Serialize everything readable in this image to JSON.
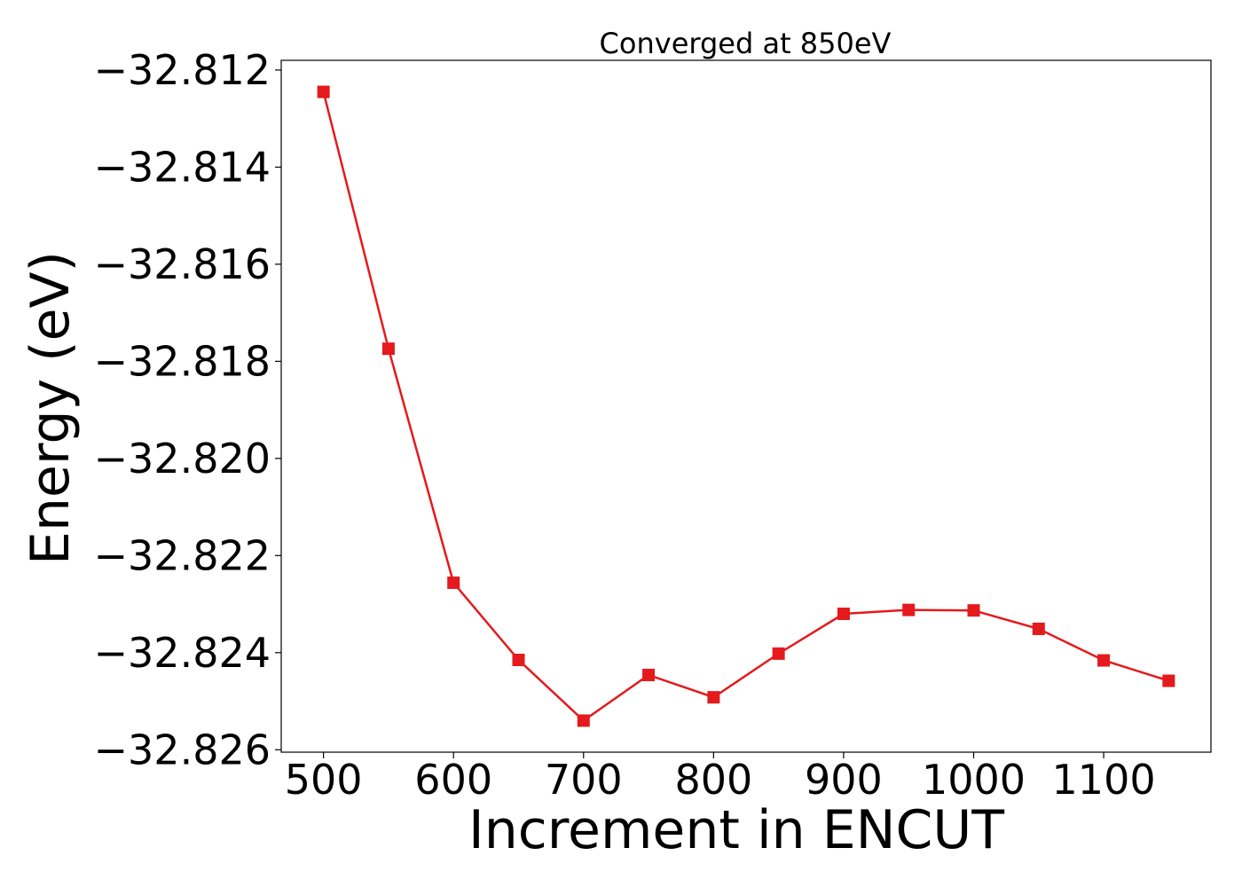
{
  "chart_data": {
    "type": "line",
    "title": "Converged at 850eV",
    "xlabel": "Increment in ENCUT",
    "ylabel": "Energy (eV)",
    "x": [
      500,
      550,
      600,
      650,
      700,
      750,
      800,
      850,
      900,
      950,
      1000,
      1050,
      1100,
      1150
    ],
    "series": [
      {
        "name": "",
        "color": "#e41a1c",
        "marker": "square",
        "values": [
          -32.81245,
          -32.81774,
          -32.82256,
          -32.82415,
          -32.8254,
          -32.82446,
          -32.82492,
          -32.82402,
          -32.8232,
          -32.82312,
          -32.82313,
          -32.82351,
          -32.82416,
          -32.82458
        ]
      }
    ],
    "xlim": [
      467.5,
      1182.5
    ],
    "ylim": [
      -32.82605,
      -32.8118
    ],
    "xticks": [
      500,
      600,
      700,
      800,
      900,
      1000,
      1100
    ],
    "xtick_labels": [
      "500",
      "600",
      "700",
      "800",
      "900",
      "1000",
      "1100"
    ],
    "yticks": [
      -32.812,
      -32.814,
      -32.816,
      -32.818,
      -32.82,
      -32.822,
      -32.824,
      -32.826
    ],
    "ytick_labels": [
      "−32.812",
      "−32.814",
      "−32.816",
      "−32.818",
      "−32.820",
      "−32.822",
      "−32.824",
      "−32.826"
    ],
    "grid": false,
    "legend": "none"
  }
}
